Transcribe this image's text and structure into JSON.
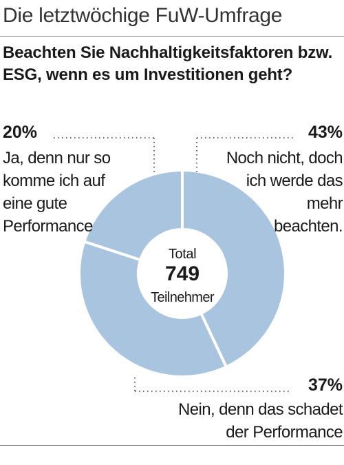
{
  "header": {
    "title": "Die letztwöchige FuW-Umfrage"
  },
  "question": "Beachten Sie Nachhaltigkeitsfaktoren bzw. ESG, wenn es um Investitionen geht?",
  "center": {
    "label_top": "Total",
    "total": "749",
    "label_bottom": "Teilnehmer"
  },
  "answers": [
    {
      "pct": "20%",
      "lines": [
        "Ja, denn nur so",
        "komme ich auf",
        "eine gute",
        "Performance"
      ]
    },
    {
      "pct": "43%",
      "lines": [
        "Noch nicht, doch",
        "ich werde das",
        "mehr",
        "beachten."
      ]
    },
    {
      "pct": "37%",
      "lines": [
        "Nein, denn das schadet",
        "der Performance"
      ]
    }
  ],
  "chart_data": {
    "type": "pie",
    "style": "donut",
    "title": "Beachten Sie Nachhaltigkeitsfaktoren bzw. ESG, wenn es um Investitionen geht?",
    "categories": [
      "Noch nicht, doch ich werde das mehr beachten.",
      "Nein, denn das schadet der Performance",
      "Ja, denn nur so komme ich auf eine gute Performance"
    ],
    "values": [
      43,
      37,
      20
    ],
    "unit": "%",
    "total_participants": 749,
    "colors": {
      "slice": "#a9c4de",
      "separator": "#ffffff",
      "leader": "#333333"
    }
  }
}
